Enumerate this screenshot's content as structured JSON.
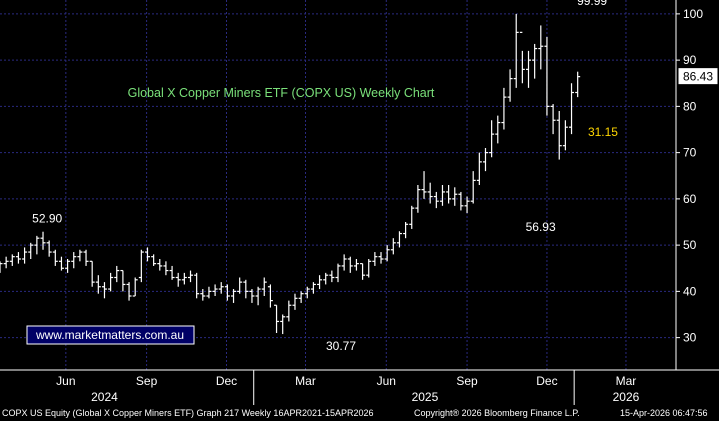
{
  "chart_data": {
    "type": "ohlc",
    "title": "Global X Copper Miners ETF (COPX US) Weekly Chart",
    "watermark": "www.marketmatters.com.au",
    "last_price_label": "86.43",
    "annotations": [
      {
        "text": "99.99",
        "x": "2026-01-26",
        "y": 99.99
      },
      {
        "text": "52.90",
        "x": "2024-05-13",
        "y": 52.9
      },
      {
        "text": "30.77",
        "x": "2025-04-07",
        "y": 30.77
      },
      {
        "text": "56.93",
        "x": "2025-11-17",
        "y": 56.93
      },
      {
        "text": "31.15",
        "x": "2026-01-19",
        "y": 74.5
      }
    ],
    "y_ticks": [
      30,
      40,
      50,
      60,
      70,
      80,
      90,
      100
    ],
    "ylim": [
      23,
      103
    ],
    "xlim": [
      "2024-03-18",
      "2026-04-27"
    ],
    "month_labels": [
      {
        "label": "Jun",
        "x": "2024-06-01"
      },
      {
        "label": "Sep",
        "x": "2024-09-01"
      },
      {
        "label": "Dec",
        "x": "2024-12-01"
      },
      {
        "label": "Mar",
        "x": "2025-03-01"
      },
      {
        "label": "Jun",
        "x": "2025-06-01"
      },
      {
        "label": "Sep",
        "x": "2025-09-01"
      },
      {
        "label": "Dec",
        "x": "2025-12-01"
      },
      {
        "label": "Mar",
        "x": "2026-03-01"
      }
    ],
    "year_labels": [
      {
        "label": "2024",
        "x": "2024-07-15"
      },
      {
        "label": "2025",
        "x": "2025-07-15"
      },
      {
        "label": "2026",
        "x": "2026-03-01"
      }
    ],
    "year_dividers": [
      "2025-01-01",
      "2026-01-01"
    ],
    "colors": {
      "background": "#000000",
      "bars": "#ffffff",
      "grid": "#2a2a80",
      "title": "#7ae07a",
      "annotation": "#ffffff",
      "highlight": "#ffd700",
      "watermark_fill": "#000066",
      "axis_text": "#ffffff"
    },
    "series": {
      "start": "2024-03-18",
      "step_days": 7,
      "bars": [
        [
          44,
          46.5,
          45,
          46
        ],
        [
          45,
          47.5,
          46,
          46.5
        ],
        [
          45.5,
          48,
          46.5,
          47.5
        ],
        [
          46,
          48.5,
          47.5,
          47
        ],
        [
          46,
          49.5,
          47,
          48.5
        ],
        [
          47,
          50.5,
          48.5,
          50
        ],
        [
          48,
          52,
          50,
          51.5
        ],
        [
          49,
          52.9,
          51.5,
          50.5
        ],
        [
          47.5,
          51,
          50.5,
          48.5
        ],
        [
          45.5,
          49,
          48.5,
          46.5
        ],
        [
          44.5,
          47.5,
          46.5,
          45
        ],
        [
          44,
          47,
          45,
          46.5
        ],
        [
          45,
          48.5,
          46.5,
          47.5
        ],
        [
          46.5,
          49,
          47.5,
          48.5
        ],
        [
          45.5,
          49,
          48.5,
          46.5
        ],
        [
          41,
          46.5,
          46.5,
          42
        ],
        [
          39.5,
          43.5,
          42,
          41
        ],
        [
          38.5,
          42,
          41,
          40.5
        ],
        [
          40,
          44,
          40.5,
          43
        ],
        [
          42,
          45.5,
          43,
          44.5
        ],
        [
          40,
          44.5,
          44.5,
          41.5
        ],
        [
          38,
          42,
          41.5,
          39
        ],
        [
          39,
          43,
          39,
          42.5
        ],
        [
          42,
          49,
          43,
          48.5
        ],
        [
          46.5,
          49.5,
          48.5,
          47.5
        ],
        [
          45.5,
          48,
          47.5,
          46
        ],
        [
          44.5,
          47,
          46,
          45.5
        ],
        [
          43.5,
          46.5,
          45.5,
          44.5
        ],
        [
          42.5,
          45.5,
          44.5,
          43
        ],
        [
          41,
          44,
          43,
          42.5
        ],
        [
          41.5,
          44,
          42.5,
          43
        ],
        [
          42,
          44.5,
          43,
          43.5
        ],
        [
          38.5,
          44,
          43.5,
          39.5
        ],
        [
          38,
          40.5,
          39.5,
          39
        ],
        [
          38.5,
          41,
          39,
          40
        ],
        [
          39,
          41.5,
          40,
          40.5
        ],
        [
          39.5,
          42,
          40.5,
          41
        ],
        [
          38,
          41.5,
          41,
          39
        ],
        [
          37.5,
          40.5,
          39,
          40
        ],
        [
          39.5,
          43,
          40,
          42
        ],
        [
          38.5,
          42.5,
          42,
          40
        ],
        [
          37.5,
          40.5,
          40,
          39
        ],
        [
          37,
          41,
          39,
          40.5
        ],
        [
          39,
          43,
          40.5,
          42
        ],
        [
          36.5,
          41.5,
          41,
          38
        ],
        [
          31,
          37,
          37,
          33.5
        ],
        [
          30.77,
          35,
          33.5,
          34.5
        ],
        [
          33.5,
          38,
          34.5,
          37
        ],
        [
          36,
          39.5,
          37,
          38.5
        ],
        [
          37.5,
          40,
          38.5,
          39.5
        ],
        [
          38.5,
          41,
          39.5,
          40.5
        ],
        [
          39.5,
          42,
          40.5,
          41.5
        ],
        [
          40.5,
          43.5,
          41.5,
          42.5
        ],
        [
          41.5,
          44,
          42.5,
          43.5
        ],
        [
          42,
          44.5,
          43.5,
          43
        ],
        [
          42,
          46,
          43,
          45.5
        ],
        [
          44.5,
          48,
          45.5,
          47
        ],
        [
          44,
          47.5,
          47,
          45.5
        ],
        [
          44.5,
          47,
          45.5,
          46
        ],
        [
          42.5,
          46,
          46,
          43.5
        ],
        [
          43,
          47,
          43.5,
          46.5
        ],
        [
          45.5,
          48.5,
          46.5,
          47.5
        ],
        [
          46,
          48.5,
          47.5,
          47
        ],
        [
          46.5,
          50,
          47,
          49
        ],
        [
          48,
          51.5,
          49,
          50.5
        ],
        [
          49.5,
          53,
          50.5,
          52.5
        ],
        [
          51.5,
          55,
          52.5,
          54.5
        ],
        [
          53.5,
          58.5,
          54.5,
          58
        ],
        [
          57,
          63,
          58,
          62
        ],
        [
          60,
          66,
          62,
          61.5
        ],
        [
          59,
          63.5,
          61.5,
          60.5
        ],
        [
          58,
          61.5,
          60.5,
          59.5
        ],
        [
          58.5,
          63,
          59.5,
          61.5
        ],
        [
          59,
          63,
          61.5,
          60
        ],
        [
          58.5,
          62.5,
          60,
          61
        ],
        [
          57.5,
          61.5,
          61,
          58.5
        ],
        [
          56.93,
          60.5,
          58.5,
          59.5
        ],
        [
          59,
          66,
          59.5,
          64
        ],
        [
          63,
          70,
          64,
          68
        ],
        [
          66,
          71,
          68,
          70
        ],
        [
          69,
          77,
          70,
          74
        ],
        [
          72,
          78,
          74,
          76.5
        ],
        [
          75,
          84,
          76.5,
          82
        ],
        [
          81,
          88,
          82,
          86
        ],
        [
          84,
          99.99,
          86,
          96
        ],
        [
          85,
          92,
          96,
          88
        ],
        [
          84,
          92,
          88,
          90
        ],
        [
          86,
          93.5,
          90,
          92.5
        ],
        [
          88,
          97.5,
          92.5,
          93
        ],
        [
          78,
          95,
          93,
          80
        ],
        [
          74,
          80.5,
          80,
          77
        ],
        [
          68.5,
          79,
          77,
          71.5
        ],
        [
          70.5,
          77,
          71.5,
          75.5
        ],
        [
          74,
          85,
          75.5,
          83
        ],
        [
          82,
          87.5,
          83,
          86.43
        ]
      ]
    }
  },
  "footer": {
    "left": "COPX US Equity (Global X Copper Miners ETF) Graph 217 Weekly 16APR2021-15APR2026",
    "center": "Copyright® 2026 Bloomberg Finance L.P.",
    "right": "15-Apr-2026 06:47:56"
  }
}
